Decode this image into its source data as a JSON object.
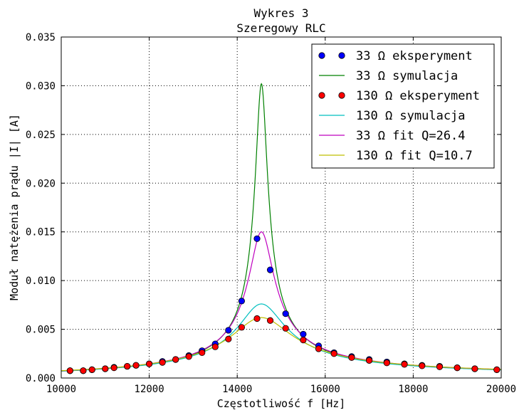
{
  "chart_data": {
    "type": "line",
    "title": "Wykres 3",
    "subtitle": "Szeregowy RLC",
    "xlabel": "Częstotliwość f [Hz]",
    "ylabel": "Moduł natężenia prądu |I| [A]",
    "xlim": [
      10000,
      20000
    ],
    "ylim": [
      0,
      0.035
    ],
    "x_ticks": [
      "10000",
      "12000",
      "14000",
      "16000",
      "18000",
      "20000"
    ],
    "y_ticks": [
      "0.000",
      "0.005",
      "0.010",
      "0.015",
      "0.020",
      "0.025",
      "0.030",
      "0.035"
    ],
    "grid": true,
    "legend_position": "top-right",
    "series": [
      {
        "name": "33 Ω eksperyment",
        "kind": "markers",
        "color": "#0000ff",
        "x": [
          10200,
          10500,
          10700,
          11000,
          11200,
          11500,
          11700,
          12000,
          12300,
          12600,
          12900,
          13200,
          13500,
          13800,
          14100,
          14450,
          14750,
          15100,
          15500,
          15850,
          16200,
          16600,
          17000,
          17400,
          17800,
          18200,
          18600,
          19000,
          19400,
          19900
        ],
        "values": [
          0.00075,
          0.00075,
          0.00085,
          0.00095,
          0.0011,
          0.0012,
          0.0013,
          0.00145,
          0.0017,
          0.0019,
          0.0023,
          0.0028,
          0.0035,
          0.0049,
          0.0079,
          0.0143,
          0.0111,
          0.0066,
          0.0045,
          0.0033,
          0.0026,
          0.0022,
          0.0019,
          0.00165,
          0.00145,
          0.0013,
          0.0012,
          0.00105,
          0.00095,
          0.00085
        ]
      },
      {
        "name": "33 Ω symulacja",
        "kind": "line",
        "color": "#008000",
        "f0": 14550,
        "peak": 0.0302,
        "q": 55
      },
      {
        "name": "130 Ω eksperyment",
        "kind": "markers",
        "color": "#ff0000",
        "x": [
          10200,
          10500,
          10700,
          11000,
          11200,
          11500,
          11700,
          12000,
          12300,
          12600,
          12900,
          13200,
          13500,
          13800,
          14100,
          14450,
          14750,
          15100,
          15500,
          15850,
          16200,
          16600,
          17000,
          17400,
          17800,
          18200,
          18600,
          19000,
          19400,
          19900
        ],
        "values": [
          0.00075,
          0.00075,
          0.00085,
          0.00095,
          0.00105,
          0.0012,
          0.0013,
          0.00145,
          0.0016,
          0.0019,
          0.0022,
          0.0026,
          0.0032,
          0.004,
          0.0052,
          0.0061,
          0.0059,
          0.0051,
          0.0039,
          0.003,
          0.0025,
          0.0021,
          0.0018,
          0.00155,
          0.0014,
          0.00125,
          0.00115,
          0.00105,
          0.00095,
          0.00085
        ]
      },
      {
        "name": "130 Ω symulacja",
        "kind": "line",
        "color": "#00bfbf",
        "f0": 14550,
        "peak": 0.0076,
        "q": 14
      },
      {
        "name": "33 Ω fit Q=26.4",
        "kind": "line",
        "color": "#bf00bf",
        "f0": 14550,
        "peak": 0.015,
        "q": 26.4
      },
      {
        "name": "130 Ω fit Q=10.7",
        "kind": "line",
        "color": "#bfbf00",
        "f0": 14550,
        "peak": 0.0062,
        "q": 10.7
      }
    ]
  }
}
